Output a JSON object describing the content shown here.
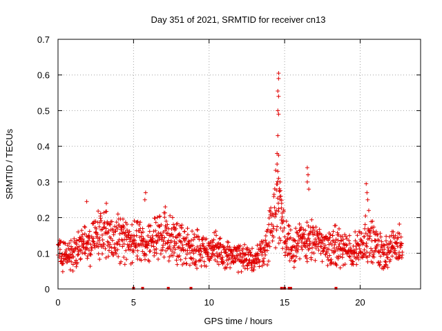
{
  "chart_data": {
    "type": "scatter",
    "title": "Day 351 of 2021, SRMTID for receiver cn13",
    "xlabel": "GPS time / hours",
    "ylabel": "SRMTID / TECUs",
    "xlim": [
      0,
      24
    ],
    "ylim": [
      0,
      0.7
    ],
    "xticks": [
      0,
      5,
      10,
      15,
      20
    ],
    "xtick_labels": [
      "0",
      "5",
      "10",
      "15",
      "20"
    ],
    "yticks": [
      0,
      0.1,
      0.2,
      0.3,
      0.4,
      0.5,
      0.6,
      0.7
    ],
    "ytick_labels": [
      "0",
      "0.1",
      "0.2",
      "0.3",
      "0.4",
      "0.5",
      "0.6",
      "0.7"
    ],
    "grid": true,
    "marker": "+",
    "color": "#e00000",
    "approx_profile": [
      {
        "x": 0.0,
        "y": 0.1
      },
      {
        "x": 1.0,
        "y": 0.1
      },
      {
        "x": 2.0,
        "y": 0.13
      },
      {
        "x": 3.0,
        "y": 0.16
      },
      {
        "x": 4.0,
        "y": 0.14
      },
      {
        "x": 5.0,
        "y": 0.13
      },
      {
        "x": 6.0,
        "y": 0.14
      },
      {
        "x": 7.0,
        "y": 0.15
      },
      {
        "x": 8.0,
        "y": 0.13
      },
      {
        "x": 9.0,
        "y": 0.12
      },
      {
        "x": 10.0,
        "y": 0.11
      },
      {
        "x": 11.0,
        "y": 0.1
      },
      {
        "x": 12.0,
        "y": 0.085
      },
      {
        "x": 13.0,
        "y": 0.08
      },
      {
        "x": 13.8,
        "y": 0.12
      },
      {
        "x": 14.2,
        "y": 0.2
      },
      {
        "x": 14.6,
        "y": 0.25
      },
      {
        "x": 15.0,
        "y": 0.16
      },
      {
        "x": 15.5,
        "y": 0.12
      },
      {
        "x": 16.5,
        "y": 0.14
      },
      {
        "x": 17.5,
        "y": 0.12
      },
      {
        "x": 18.5,
        "y": 0.12
      },
      {
        "x": 19.5,
        "y": 0.1
      },
      {
        "x": 20.5,
        "y": 0.15
      },
      {
        "x": 21.5,
        "y": 0.1
      },
      {
        "x": 22.8,
        "y": 0.13
      }
    ],
    "spike_points": [
      {
        "x": 14.6,
        "y": 0.605
      },
      {
        "x": 14.6,
        "y": 0.59
      },
      {
        "x": 14.55,
        "y": 0.555
      },
      {
        "x": 14.6,
        "y": 0.54
      },
      {
        "x": 14.55,
        "y": 0.5
      },
      {
        "x": 14.6,
        "y": 0.49
      },
      {
        "x": 14.55,
        "y": 0.43
      },
      {
        "x": 14.5,
        "y": 0.38
      },
      {
        "x": 14.6,
        "y": 0.375
      },
      {
        "x": 14.5,
        "y": 0.35
      },
      {
        "x": 14.55,
        "y": 0.33
      },
      {
        "x": 14.6,
        "y": 0.31
      },
      {
        "x": 14.7,
        "y": 0.3
      },
      {
        "x": 14.75,
        "y": 0.26
      },
      {
        "x": 14.8,
        "y": 0.24
      },
      {
        "x": 16.5,
        "y": 0.34
      },
      {
        "x": 16.55,
        "y": 0.32
      },
      {
        "x": 16.5,
        "y": 0.3
      },
      {
        "x": 16.6,
        "y": 0.28
      },
      {
        "x": 20.4,
        "y": 0.295
      },
      {
        "x": 20.45,
        "y": 0.27
      },
      {
        "x": 20.5,
        "y": 0.25
      },
      {
        "x": 5.8,
        "y": 0.27
      },
      {
        "x": 5.75,
        "y": 0.25
      },
      {
        "x": 1.9,
        "y": 0.245
      },
      {
        "x": 3.2,
        "y": 0.24
      },
      {
        "x": 7.1,
        "y": 0.23
      }
    ],
    "zero_points": [
      {
        "x": 5.0,
        "y": 0
      },
      {
        "x": 5.6,
        "y": 0
      },
      {
        "x": 7.3,
        "y": 0
      },
      {
        "x": 8.8,
        "y": 0
      },
      {
        "x": 14.8,
        "y": 0
      },
      {
        "x": 15.0,
        "y": 0
      },
      {
        "x": 15.3,
        "y": 0
      },
      {
        "x": 15.4,
        "y": 0
      },
      {
        "x": 18.4,
        "y": 0
      }
    ],
    "x_data_end": 22.8
  }
}
